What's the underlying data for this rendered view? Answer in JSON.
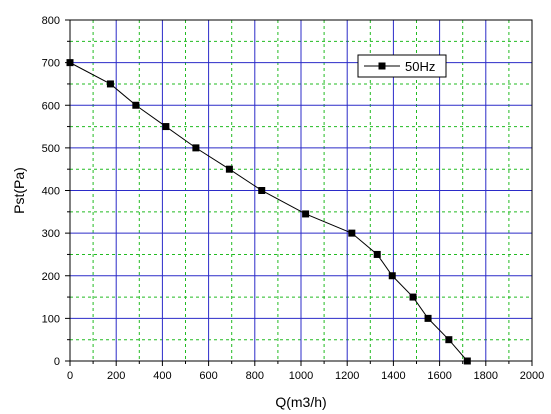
{
  "chart_data": {
    "type": "line",
    "title": "",
    "xlabel": "Q(m3/h)",
    "ylabel": "Pst(Pa)",
    "xlim": [
      0,
      2000
    ],
    "ylim": [
      0,
      800
    ],
    "x_ticks": [
      0,
      200,
      400,
      600,
      800,
      1000,
      1200,
      1400,
      1600,
      1800,
      2000
    ],
    "y_ticks": [
      0,
      100,
      200,
      300,
      400,
      500,
      600,
      700,
      800
    ],
    "grid": {
      "major": true,
      "minor": true,
      "major_color": "#2b2bc8",
      "minor_color": "#22bb22"
    },
    "legend_position": "top-right",
    "series": [
      {
        "name": "50Hz",
        "color": "#000000",
        "marker": "square",
        "x": [
          0,
          175,
          285,
          415,
          545,
          690,
          830,
          1020,
          1220,
          1330,
          1395,
          1485,
          1550,
          1640,
          1720
        ],
        "y": [
          700,
          650,
          600,
          550,
          500,
          450,
          400,
          345,
          300,
          250,
          200,
          150,
          100,
          50,
          0
        ]
      }
    ]
  }
}
